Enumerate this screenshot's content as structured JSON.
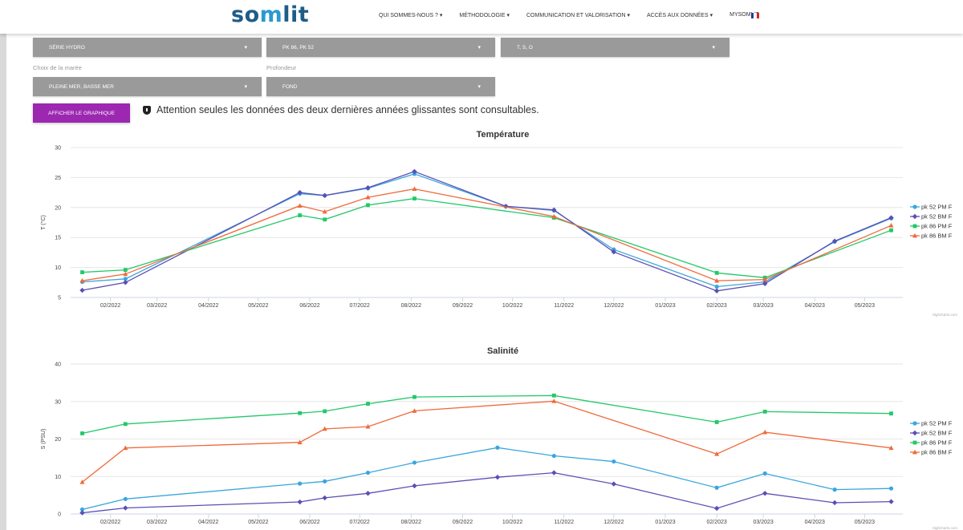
{
  "header": {
    "logo_prefix": "so",
    "logo_mark": "m",
    "logo_suffix": "lit",
    "nav": [
      {
        "label": "QUI SOMMES-NOUS ? ▾"
      },
      {
        "label": "MÉTHODOLOGIE ▾"
      },
      {
        "label": "COMMUNICATION ET VALORISATION ▾"
      },
      {
        "label": "ACCÈS AUX DONNÉES ▾"
      },
      {
        "label": "MYSOMLIT"
      }
    ],
    "flag_colors": [
      "#1c3fa0",
      "#ffffff",
      "#e2202a"
    ]
  },
  "filters": {
    "serie": "SÉRIE HYDRO",
    "stations": "PK 86, PK 52",
    "params": "T, S, O",
    "maree_label": "Choix de la marée",
    "maree": "PLEINE MER, BASSE MER",
    "profondeur_label": "Profondeur",
    "profondeur": "FOND",
    "caret": "▾"
  },
  "action": {
    "button_label": "AFFICHER LE GRAPHIQUE",
    "notice": "Attention seules les données des deux dernières années glissantes sont consultables."
  },
  "colors": {
    "pk52_pm": "#3aa6de",
    "pk52_bm": "#5a4fb5",
    "pk86_pm": "#22c86a",
    "pk86_bm": "#f06a3a",
    "button": "#9c27b0"
  },
  "chart_data": [
    {
      "type": "line",
      "title": "Température",
      "ylabel": "T (°C)",
      "xlabel": "",
      "credit": "Highcharts.com",
      "x_dates": [
        "2022-01-15",
        "2022-02-10",
        "2022-05-26",
        "2022-06-10",
        "2022-07-06",
        "2022-08-03",
        "2022-09-27",
        "2022-10-26",
        "2022-12-01",
        "2023-02-01",
        "2023-03-02",
        "2023-04-13",
        "2023-05-17"
      ],
      "series": [
        {
          "name": "pk 52 PM F",
          "marker": "circle",
          "color": "#3aa6de",
          "points": [
            [
              "2022-01-15",
              7.6
            ],
            [
              "2022-02-10",
              8.1
            ],
            [
              "2022-05-26",
              22.3
            ],
            [
              "2022-06-10",
              22.0
            ],
            [
              "2022-07-06",
              23.2
            ],
            [
              "2022-08-03",
              25.6
            ],
            [
              "2022-09-27",
              20.2
            ],
            [
              "2022-10-26",
              19.5
            ],
            [
              "2022-12-01",
              13.0
            ],
            [
              "2023-02-01",
              6.8
            ],
            [
              "2023-03-02",
              7.6
            ],
            [
              "2023-04-13",
              14.3
            ],
            [
              "2023-05-17",
              18.2
            ]
          ]
        },
        {
          "name": "pk 52 BM F",
          "marker": "diamond",
          "color": "#5a4fb5",
          "points": [
            [
              "2022-01-15",
              6.2
            ],
            [
              "2022-02-10",
              7.5
            ],
            [
              "2022-05-26",
              22.5
            ],
            [
              "2022-06-10",
              22.0
            ],
            [
              "2022-07-06",
              23.3
            ],
            [
              "2022-08-03",
              26.0
            ],
            [
              "2022-09-27",
              20.2
            ],
            [
              "2022-10-26",
              19.6
            ],
            [
              "2022-12-01",
              12.6
            ],
            [
              "2023-02-01",
              6.1
            ],
            [
              "2023-03-02",
              7.3
            ],
            [
              "2023-04-13",
              14.4
            ],
            [
              "2023-05-17",
              18.3
            ]
          ]
        },
        {
          "name": "pk 86 PM F",
          "marker": "square",
          "color": "#22c86a",
          "points": [
            [
              "2022-01-15",
              9.2
            ],
            [
              "2022-02-10",
              9.6
            ],
            [
              "2022-05-26",
              18.7
            ],
            [
              "2022-06-10",
              18.0
            ],
            [
              "2022-07-06",
              20.4
            ],
            [
              "2022-08-03",
              21.5
            ],
            [
              "2022-10-26",
              18.3
            ],
            [
              "2023-02-01",
              9.1
            ],
            [
              "2023-03-02",
              8.3
            ],
            [
              "2023-05-17",
              16.2
            ]
          ]
        },
        {
          "name": "pk 86 BM F",
          "marker": "triangle",
          "color": "#f06a3a",
          "points": [
            [
              "2022-01-15",
              7.8
            ],
            [
              "2022-02-10",
              8.9
            ],
            [
              "2022-05-26",
              20.3
            ],
            [
              "2022-06-10",
              19.3
            ],
            [
              "2022-07-06",
              21.7
            ],
            [
              "2022-08-03",
              23.1
            ],
            [
              "2022-10-26",
              18.5
            ],
            [
              "2023-02-01",
              7.8
            ],
            [
              "2023-03-02",
              8.0
            ],
            [
              "2023-05-17",
              17.0
            ]
          ]
        }
      ],
      "ylim": [
        5,
        30
      ],
      "yticks": [
        5,
        10,
        15,
        20,
        25,
        30
      ],
      "xlim": [
        "2022-01-08",
        "2023-05-24"
      ],
      "xticks": [
        {
          "date": "2022-02-01",
          "label": "02/2022"
        },
        {
          "date": "2022-03-01",
          "label": "03/2022"
        },
        {
          "date": "2022-04-01",
          "label": "04/2022"
        },
        {
          "date": "2022-05-01",
          "label": "05/2022"
        },
        {
          "date": "2022-06-01",
          "label": "06/2022"
        },
        {
          "date": "2022-07-01",
          "label": "07/2022"
        },
        {
          "date": "2022-08-01",
          "label": "08/2022"
        },
        {
          "date": "2022-09-01",
          "label": "09/2022"
        },
        {
          "date": "2022-10-01",
          "label": "10/2022"
        },
        {
          "date": "2022-11-01",
          "label": "11/2022"
        },
        {
          "date": "2022-12-01",
          "label": "12/2022"
        },
        {
          "date": "2023-01-01",
          "label": "01/2023"
        },
        {
          "date": "2023-02-01",
          "label": "02/2023"
        },
        {
          "date": "2023-03-01",
          "label": "03/2023"
        },
        {
          "date": "2023-04-01",
          "label": "04/2023"
        },
        {
          "date": "2023-05-01",
          "label": "05/2023"
        }
      ],
      "grid": true,
      "legend": "right"
    },
    {
      "type": "line",
      "title": "Salinité",
      "ylabel": "S (PSU)",
      "xlabel": "",
      "credit": "Highcharts.com",
      "series": [
        {
          "name": "pk 52 PM F",
          "marker": "circle",
          "color": "#3aa6de",
          "points": [
            [
              "2022-01-15",
              1.2
            ],
            [
              "2022-02-10",
              4.0
            ],
            [
              "2022-05-26",
              8.1
            ],
            [
              "2022-06-10",
              8.7
            ],
            [
              "2022-07-06",
              11.0
            ],
            [
              "2022-08-03",
              13.7
            ],
            [
              "2022-09-22",
              17.7
            ],
            [
              "2022-10-26",
              15.5
            ],
            [
              "2022-12-01",
              14.0
            ],
            [
              "2023-02-01",
              7.0
            ],
            [
              "2023-03-02",
              10.8
            ],
            [
              "2023-04-13",
              6.5
            ],
            [
              "2023-05-17",
              6.8
            ]
          ]
        },
        {
          "name": "pk 52 BM F",
          "marker": "diamond",
          "color": "#5a4fb5",
          "points": [
            [
              "2022-01-15",
              0.3
            ],
            [
              "2022-02-10",
              1.6
            ],
            [
              "2022-05-26",
              3.2
            ],
            [
              "2022-06-10",
              4.3
            ],
            [
              "2022-07-06",
              5.5
            ],
            [
              "2022-08-03",
              7.5
            ],
            [
              "2022-09-22",
              9.8
            ],
            [
              "2022-10-26",
              11.0
            ],
            [
              "2022-12-01",
              8.0
            ],
            [
              "2023-02-01",
              1.5
            ],
            [
              "2023-03-02",
              5.5
            ],
            [
              "2023-04-13",
              3.0
            ],
            [
              "2023-05-17",
              3.3
            ]
          ]
        },
        {
          "name": "pk 86 PM F",
          "marker": "square",
          "color": "#22c86a",
          "points": [
            [
              "2022-01-15",
              21.5
            ],
            [
              "2022-02-10",
              24.0
            ],
            [
              "2022-05-26",
              26.9
            ],
            [
              "2022-06-10",
              27.4
            ],
            [
              "2022-07-06",
              29.4
            ],
            [
              "2022-08-03",
              31.2
            ],
            [
              "2022-10-26",
              31.6
            ],
            [
              "2023-02-01",
              24.5
            ],
            [
              "2023-03-02",
              27.3
            ],
            [
              "2023-05-17",
              26.8
            ]
          ]
        },
        {
          "name": "pk 86 BM F",
          "marker": "triangle",
          "color": "#f06a3a",
          "points": [
            [
              "2022-01-15",
              8.5
            ],
            [
              "2022-02-10",
              17.6
            ],
            [
              "2022-05-26",
              19.1
            ],
            [
              "2022-06-10",
              22.7
            ],
            [
              "2022-07-06",
              23.3
            ],
            [
              "2022-08-03",
              27.5
            ],
            [
              "2022-10-26",
              30.1
            ],
            [
              "2023-02-01",
              16.0
            ],
            [
              "2023-03-02",
              21.8
            ],
            [
              "2023-05-17",
              17.6
            ]
          ]
        }
      ],
      "ylim": [
        0,
        40
      ],
      "yticks": [
        0,
        10,
        20,
        30,
        40
      ],
      "xlim": [
        "2022-01-08",
        "2023-05-24"
      ],
      "xticks": [
        {
          "date": "2022-02-01",
          "label": "02/2022"
        },
        {
          "date": "2022-03-01",
          "label": "03/2022"
        },
        {
          "date": "2022-04-01",
          "label": "04/2022"
        },
        {
          "date": "2022-05-01",
          "label": "05/2022"
        },
        {
          "date": "2022-06-01",
          "label": "06/2022"
        },
        {
          "date": "2022-07-01",
          "label": "07/2022"
        },
        {
          "date": "2022-08-01",
          "label": "08/2022"
        },
        {
          "date": "2022-09-01",
          "label": "09/2022"
        },
        {
          "date": "2022-10-01",
          "label": "10/2022"
        },
        {
          "date": "2022-11-01",
          "label": "11/2022"
        },
        {
          "date": "2022-12-01",
          "label": "12/2022"
        },
        {
          "date": "2023-01-01",
          "label": "01/2023"
        },
        {
          "date": "2023-02-01",
          "label": "02/2023"
        },
        {
          "date": "2023-03-01",
          "label": "03/2023"
        },
        {
          "date": "2023-04-01",
          "label": "04/2023"
        },
        {
          "date": "2023-05-01",
          "label": "05/2023"
        }
      ],
      "grid": true,
      "legend": "right"
    }
  ]
}
